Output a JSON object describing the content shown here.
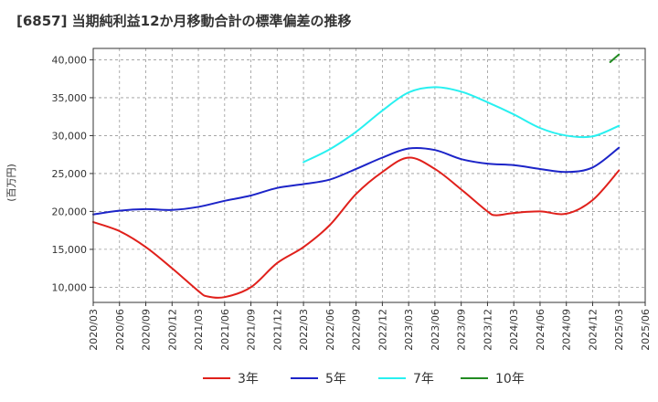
{
  "title": "[6857]  当期純利益12か月移動合計の標準偏差の推移",
  "chart_data": {
    "type": "line",
    "title": "[6857]  当期純利益12か月移動合計の標準偏差の推移",
    "xlabel": "",
    "ylabel": "(百万円)",
    "ylim": [
      8000,
      41500
    ],
    "yticks": [
      10000,
      15000,
      20000,
      25000,
      30000,
      35000,
      40000
    ],
    "ytick_labels": [
      "10,000",
      "15,000",
      "20,000",
      "25,000",
      "30,000",
      "35,000",
      "40,000"
    ],
    "xticks": [
      "2020/03",
      "2020/06",
      "2020/09",
      "2020/12",
      "2021/03",
      "2021/06",
      "2021/09",
      "2021/12",
      "2022/03",
      "2022/06",
      "2022/09",
      "2022/12",
      "2023/03",
      "2023/06",
      "2023/09",
      "2023/12",
      "2024/03",
      "2024/06",
      "2024/09",
      "2024/12",
      "2025/03",
      "2025/06"
    ],
    "grid": true,
    "legend_position": "bottom",
    "series": [
      {
        "name": "3年",
        "color": "#e0201b",
        "x": [
          "2020/03",
          "2020/06",
          "2020/09",
          "2020/12",
          "2021/03",
          "2021/04",
          "2021/06",
          "2021/09",
          "2021/12",
          "2022/03",
          "2022/06",
          "2022/09",
          "2022/12",
          "2023/03",
          "2023/06",
          "2023/09",
          "2023/12",
          "2024/01",
          "2024/03",
          "2024/06",
          "2024/09",
          "2024/12",
          "2025/03"
        ],
        "values": [
          18600,
          17400,
          15300,
          12500,
          9500,
          8800,
          8700,
          10000,
          13200,
          15300,
          18200,
          22300,
          25200,
          27100,
          25600,
          22900,
          20000,
          19500,
          19800,
          20000,
          19700,
          21500,
          25400
        ]
      },
      {
        "name": "5年",
        "color": "#1c24c8",
        "x": [
          "2020/03",
          "2020/06",
          "2020/09",
          "2020/12",
          "2021/03",
          "2021/06",
          "2021/09",
          "2021/12",
          "2022/03",
          "2022/06",
          "2022/09",
          "2022/12",
          "2023/03",
          "2023/06",
          "2023/09",
          "2023/12",
          "2024/03",
          "2024/06",
          "2024/09",
          "2024/12",
          "2025/03"
        ],
        "values": [
          19600,
          20100,
          20300,
          20200,
          20600,
          21400,
          22100,
          23100,
          23600,
          24200,
          25600,
          27100,
          28300,
          28100,
          26900,
          26300,
          26100,
          25600,
          25200,
          25800,
          28400
        ]
      },
      {
        "name": "7年",
        "color": "#28f0f0",
        "x": [
          "2022/03",
          "2022/06",
          "2022/09",
          "2022/12",
          "2023/03",
          "2023/06",
          "2023/09",
          "2023/12",
          "2024/03",
          "2024/06",
          "2024/09",
          "2024/12",
          "2025/03"
        ],
        "values": [
          26500,
          28200,
          30500,
          33300,
          35700,
          36400,
          35800,
          34400,
          32800,
          31000,
          30000,
          29900,
          31300
        ]
      },
      {
        "name": "10年",
        "color": "#228b22",
        "x": [
          "2025/02",
          "2025/03"
        ],
        "values": [
          39700,
          40700
        ]
      }
    ]
  }
}
